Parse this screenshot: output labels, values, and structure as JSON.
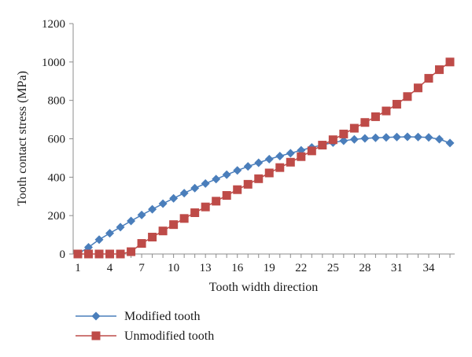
{
  "chart_data": {
    "type": "line",
    "xlabel": "Tooth width direction",
    "ylabel": "Tooth contact stress (MPa)",
    "xlim": [
      1,
      36
    ],
    "ylim": [
      0,
      1200
    ],
    "x_ticks": [
      1,
      4,
      7,
      10,
      13,
      16,
      19,
      22,
      25,
      28,
      31,
      34
    ],
    "y_ticks": [
      0,
      200,
      400,
      600,
      800,
      1000,
      1200
    ],
    "grid": false,
    "legend_position": "bottom-left",
    "x": [
      1,
      2,
      3,
      4,
      5,
      6,
      7,
      8,
      9,
      10,
      11,
      12,
      13,
      14,
      15,
      16,
      17,
      18,
      19,
      20,
      21,
      22,
      23,
      24,
      25,
      26,
      27,
      28,
      29,
      30,
      31,
      32,
      33,
      34,
      35,
      36
    ],
    "series": [
      {
        "name": "Modified tooth",
        "color": "#4a7ebb",
        "marker": "diamond",
        "values": [
          0,
          35,
          75,
          108,
          140,
          172,
          203,
          233,
          262,
          290,
          317,
          343,
          367,
          390,
          413,
          435,
          456,
          475,
          494,
          510,
          525,
          540,
          555,
          568,
          580,
          590,
          597,
          602,
          605,
          607,
          609,
          610,
          609,
          607,
          598,
          578
        ]
      },
      {
        "name": "Unmodified tooth",
        "color": "#be4b48",
        "marker": "square",
        "values": [
          0,
          0,
          0,
          0,
          0,
          12,
          55,
          88,
          120,
          153,
          185,
          215,
          245,
          275,
          305,
          335,
          363,
          392,
          422,
          450,
          478,
          507,
          537,
          567,
          595,
          625,
          655,
          685,
          715,
          745,
          780,
          820,
          865,
          915,
          960,
          1000
        ]
      }
    ]
  }
}
